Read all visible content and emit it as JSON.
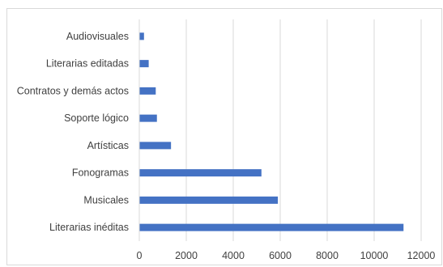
{
  "chart_data": {
    "type": "bar",
    "orientation": "horizontal",
    "title": "",
    "xlabel": "",
    "ylabel": "",
    "categories": [
      "Literarias inéditas",
      "Musicales",
      "Fonogramas",
      "Artísticas",
      "Soporte lógico",
      "Contratos y demás actos",
      "Literarias editadas",
      "Audiovisuales"
    ],
    "series": [
      {
        "values": [
          11250,
          5900,
          5200,
          1350,
          750,
          700,
          400,
          200
        ],
        "color": "#4472c4"
      }
    ],
    "xlim": [
      0,
      12000
    ],
    "xticks": [
      0,
      2000,
      4000,
      6000,
      8000,
      10000,
      12000
    ],
    "grid": "vertical",
    "legend": "none",
    "colors": {
      "bar": "#4472c4",
      "grid": "#d9d9d9",
      "text": "#404040"
    }
  }
}
